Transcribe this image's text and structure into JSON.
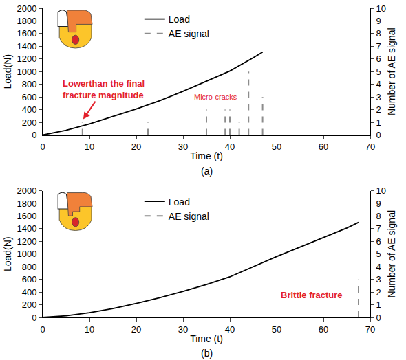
{
  "chart_data": [
    {
      "type": "line",
      "title": "(a)",
      "x_label": "Time (t)",
      "y_label": "Load(N)",
      "y2_label": "Number of AE signal",
      "xlim": [
        0,
        70
      ],
      "xticks": [
        0,
        10,
        20,
        30,
        40,
        50,
        60,
        70
      ],
      "ylim": [
        0,
        2000
      ],
      "yticks": [
        0,
        200,
        400,
        600,
        800,
        1000,
        1200,
        1400,
        1600,
        1800,
        2000
      ],
      "y2lim": [
        0,
        10
      ],
      "y2ticks": [
        0,
        1,
        2,
        3,
        4,
        5,
        6,
        7,
        8,
        9,
        10
      ],
      "grid": false,
      "legend": "top",
      "series": [
        {
          "name": "Load",
          "color": "#000000",
          "line_style": "solid",
          "x": [
            0,
            5,
            10,
            15,
            20,
            25,
            30,
            35,
            40,
            45,
            47
          ],
          "values": [
            0,
            75,
            175,
            290,
            410,
            540,
            690,
            850,
            1010,
            1220,
            1310
          ]
        },
        {
          "name": "AE signal",
          "type": "bar",
          "axis": "y2",
          "color": "#8c8c8c",
          "line_style": "dashed",
          "x": [
            8.5,
            22.5,
            35,
            39,
            40,
            42,
            44,
            47
          ],
          "values": [
            1,
            1,
            2,
            2,
            2,
            1,
            5,
            3
          ]
        }
      ],
      "annotations": [
        {
          "text": "Lowerthan the final fracture magnitude",
          "x": 8.5,
          "y": 230,
          "text_x": 13,
          "text_y": 720,
          "color": "#e3202b"
        },
        {
          "text": "Micro-cracks",
          "x": 37,
          "y": 600,
          "color": "#e3202b"
        }
      ]
    },
    {
      "type": "line",
      "title": "(b)",
      "x_label": "Time (t)",
      "y_label": "Load(N)",
      "y2_label": "Number of AE signal",
      "xlim": [
        0,
        70
      ],
      "xticks": [
        0,
        10,
        20,
        30,
        40,
        50,
        60,
        70
      ],
      "ylim": [
        0,
        2000
      ],
      "yticks": [
        0,
        200,
        400,
        600,
        800,
        1000,
        1200,
        1400,
        1600,
        1800,
        2000
      ],
      "y2lim": [
        0,
        10
      ],
      "y2ticks": [
        0,
        1,
        2,
        3,
        4,
        5,
        6,
        7,
        8,
        9,
        10
      ],
      "grid": false,
      "legend": "top",
      "series": [
        {
          "name": "Load",
          "color": "#000000",
          "line_style": "solid",
          "x": [
            0,
            5,
            10,
            15,
            20,
            25,
            30,
            35,
            40,
            45,
            50,
            55,
            60,
            65,
            67.5
          ],
          "values": [
            0,
            25,
            75,
            140,
            220,
            310,
            410,
            520,
            640,
            800,
            960,
            1110,
            1260,
            1410,
            1500
          ]
        },
        {
          "name": "AE signal",
          "type": "bar",
          "axis": "y2",
          "color": "#8c8c8c",
          "line_style": "dashed",
          "x": [
            67.5
          ],
          "values": [
            3
          ]
        }
      ],
      "annotations": [
        {
          "text": "Brittle fracture",
          "x": 57.5,
          "y": 350,
          "color": "#e3202b"
        }
      ]
    }
  ]
}
